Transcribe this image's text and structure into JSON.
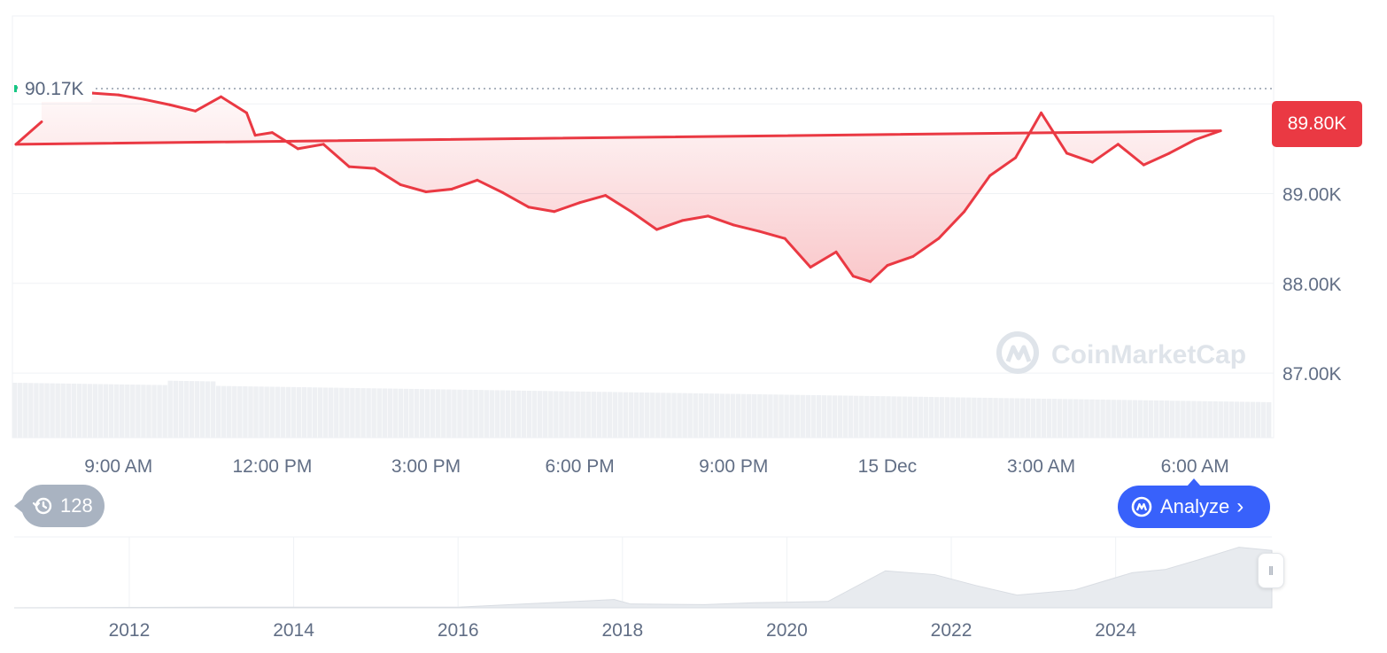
{
  "chart_data": [
    {
      "type": "line",
      "title": "",
      "xlabel": "",
      "ylabel": "",
      "x_ticks": [
        "9:00 AM",
        "12:00 PM",
        "3:00 PM",
        "6:00 PM",
        "9:00 PM",
        "15 Dec",
        "3:00 AM",
        "6:00 AM"
      ],
      "y_ticks": [
        "87.00K",
        "88.00K",
        "89.00K"
      ],
      "ylim": [
        86280,
        90980
      ],
      "grid": true,
      "reference_price": 90170,
      "reference_label": "90.17K",
      "current_price": 89800,
      "current_price_label": "89.80K",
      "series": [
        {
          "x": [
            "7:00",
            "7:30",
            "8:00",
            "8:30",
            "9:00",
            "9:30",
            "10:00",
            "10:30",
            "11:00",
            "11:30",
            "11:40",
            "12:00",
            "12:30",
            "13:00",
            "13:30",
            "14:00",
            "14:30",
            "15:00",
            "15:30",
            "16:00",
            "16:30",
            "17:00",
            "17:30",
            "18:00",
            "18:30",
            "19:00",
            "19:30",
            "20:00",
            "20:30",
            "21:00",
            "21:30",
            "22:00",
            "22:30",
            "23:00",
            "23:20",
            "23:40",
            "0:00",
            "0:30",
            "1:00",
            "1:30",
            "2:00",
            "2:30",
            "3:00",
            "3:30",
            "4:00",
            "4:30",
            "5:00",
            "5:30",
            "6:00",
            "6:30",
            "7:00",
            "7:30"
          ],
          "values": [
            90180,
            90200,
            90150,
            90120,
            90100,
            90050,
            89990,
            89920,
            90080,
            89900,
            89650,
            89680,
            89500,
            89550,
            89300,
            89280,
            89100,
            89020,
            89050,
            89150,
            89010,
            88850,
            88800,
            88900,
            88980,
            88800,
            88600,
            88700,
            88750,
            88650,
            88580,
            88500,
            88180,
            88350,
            88080,
            88020,
            88200,
            88300,
            88500,
            88800,
            89200,
            89400,
            89900,
            89450,
            89350,
            89550,
            89320,
            89450,
            89600,
            89700,
            89550,
            89800
          ]
        }
      ]
    },
    {
      "type": "area",
      "title": "",
      "x_ticks": [
        "2012",
        "2014",
        "2016",
        "2018",
        "2020",
        "2022",
        "2024"
      ],
      "series": [
        {
          "x": [
            2010.6,
            2013,
            2016,
            2017.9,
            2018.1,
            2019,
            2019.6,
            2020.5,
            2021.2,
            2021.8,
            2022.3,
            2022.8,
            2023.5,
            2024.2,
            2024.6,
            2025,
            2025.5,
            2025.9
          ],
          "values": [
            0,
            0.01,
            0.01,
            0.13,
            0.06,
            0.05,
            0.08,
            0.1,
            0.58,
            0.52,
            0.35,
            0.2,
            0.28,
            0.55,
            0.6,
            0.75,
            0.95,
            0.9
          ]
        }
      ]
    }
  ],
  "ui": {
    "history_count": "128",
    "analyze_label": "Analyze",
    "watermark": "CoinMarketCap",
    "colors": {
      "down": "#ea3943",
      "up": "#16c784",
      "accent": "#3861fb",
      "grid": "#eff2f5",
      "axis_text": "#616e85",
      "volume": "#eef0f3",
      "navigator": "#e8ebef",
      "watermark": "#dfe4ea"
    }
  }
}
